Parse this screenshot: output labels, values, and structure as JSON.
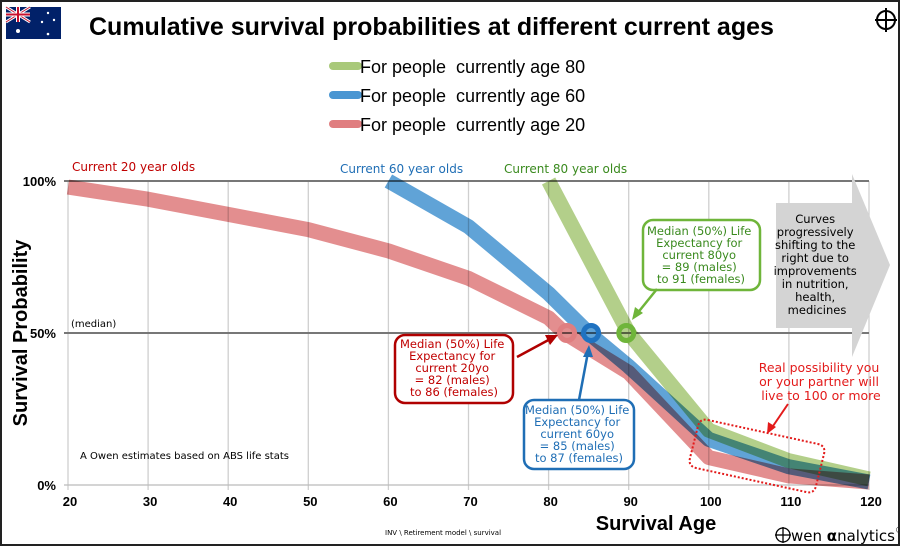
{
  "chart_data": {
    "type": "line",
    "title": "Cumulative survival probabilities at different current ages",
    "xlabel": "Survival Age",
    "ylabel": "Survival Probability",
    "xlim": [
      20,
      120
    ],
    "ylim": [
      0,
      100
    ],
    "x_ticks": [
      "20",
      "30",
      "40",
      "50",
      "60",
      "70",
      "80",
      "90",
      "100",
      "110",
      "120"
    ],
    "y_ticks": [
      "0%",
      "50%",
      "100%"
    ],
    "y_tick_values": [
      0,
      50,
      100
    ],
    "grid": "vertical every 10 years; horizontal at 0%, 50%, 100%",
    "legend_position": "top-center",
    "series": [
      {
        "name": "For people  currently age 80",
        "color": "#a9c97a",
        "x": [
          80,
          90,
          100,
          110,
          120
        ],
        "y": [
          100,
          50,
          18,
          8,
          2
        ]
      },
      {
        "name": "For people  currently age 60",
        "color": "#4a96d2",
        "x": [
          60,
          70,
          80,
          85,
          90,
          100,
          110,
          120
        ],
        "y": [
          100,
          85,
          63,
          50,
          39,
          15,
          6,
          1
        ]
      },
      {
        "name": "For people  currently age 20",
        "color": "#e07e80",
        "x": [
          20,
          30,
          40,
          50,
          60,
          70,
          80,
          82,
          90,
          100,
          110,
          120
        ],
        "y": [
          98,
          94,
          89,
          84,
          77,
          68,
          55,
          50,
          37,
          9,
          3,
          1
        ]
      }
    ],
    "median_markers": [
      {
        "x": 82.3,
        "y": 50,
        "color": "#e07e80"
      },
      {
        "x": 85.3,
        "y": 50,
        "color": "#1f72c0"
      },
      {
        "x": 89.7,
        "y": 50,
        "color": "#6fb53a"
      }
    ],
    "series_labels": {
      "age20": "Current 20 year olds",
      "age60": "Current 60 year olds",
      "age80": "Current 80 year olds"
    },
    "median_label": "(median)",
    "annotations": {
      "age20": [
        "Median (50%) Life",
        "Expectancy for",
        "current 20yo",
        "= 82 (males)",
        "to 86 (females)"
      ],
      "age60": [
        "Median (50%) Life",
        "Expectancy for",
        "current 60yo",
        "= 85 (males)",
        "to 87 (females)"
      ],
      "age80": [
        "Median (50%) Life",
        "Expectancy for",
        "current 80yo",
        "= 89 (males)",
        "to 91 (females)"
      ],
      "shift": [
        "Curves",
        "progressively",
        "shifting to the",
        "right due to",
        "improvements",
        "in nutrition,",
        "health,",
        "medicines"
      ],
      "possibility": [
        "Real possibility you",
        "or your partner will",
        "live to 100 or more"
      ]
    },
    "source_note": "A Owen estimates based on ABS life stats",
    "file_path": "INV \\ Retirement model \\ survival"
  },
  "brand": {
    "logo_text": "wen ",
    "logo_alpha": "α",
    "logo_rest": "nalytics",
    "registered": "®"
  },
  "colors": {
    "age20_text": "#c00000",
    "age60_text": "#1f6eb5",
    "age80_text": "#3a8a1e",
    "callout_red": "#e31b1b",
    "gray_arrow": "#d4d4d4"
  }
}
